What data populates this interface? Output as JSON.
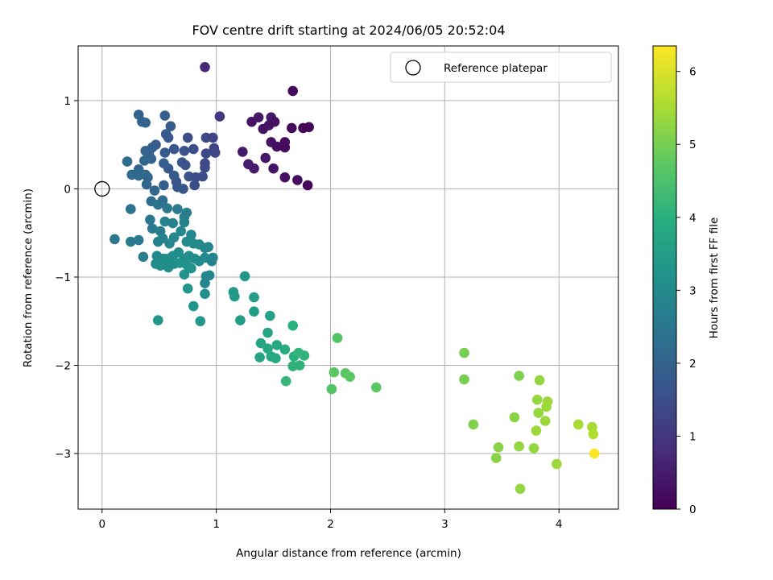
{
  "chart_data": {
    "type": "scatter",
    "title": "FOV centre drift starting at 2024/06/05 20:52:04",
    "xlabel": "Angular distance from reference (arcmin)",
    "ylabel": "Rotation from reference (arcmin)",
    "xlim": [
      -0.21,
      4.52
    ],
    "ylim": [
      -3.63,
      1.62
    ],
    "xticks": [
      0,
      1,
      2,
      3,
      4
    ],
    "yticks": [
      -3,
      -2,
      -1,
      0,
      1
    ],
    "grid": true,
    "legend": {
      "placement": "top-right",
      "entries": [
        "Reference platepar"
      ]
    },
    "reference_point": {
      "x": 0,
      "y": 0,
      "label": "Reference platepar"
    },
    "colorbar": {
      "label": "Hours from first FF file",
      "colormap": "viridis",
      "range": [
        0,
        6.35
      ],
      "ticks": [
        0,
        1,
        2,
        3,
        4,
        5,
        6
      ]
    },
    "points": [
      [
        0.9,
        1.38,
        0.7
      ],
      [
        1.67,
        1.11,
        0.15
      ],
      [
        1.03,
        0.82,
        1.0
      ],
      [
        1.31,
        0.76,
        0.3
      ],
      [
        1.37,
        0.81,
        0.4
      ],
      [
        1.48,
        0.81,
        0.45
      ],
      [
        1.41,
        0.68,
        0.3
      ],
      [
        1.46,
        0.72,
        0.35
      ],
      [
        1.51,
        0.76,
        0.3
      ],
      [
        1.48,
        0.53,
        0.3
      ],
      [
        1.53,
        0.48,
        0.25
      ],
      [
        1.6,
        0.53,
        0.2
      ],
      [
        1.6,
        0.47,
        0.2
      ],
      [
        1.66,
        0.69,
        0.15
      ],
      [
        1.76,
        0.69,
        0.1
      ],
      [
        1.81,
        0.7,
        0.1
      ],
      [
        1.23,
        0.42,
        0.45
      ],
      [
        1.28,
        0.28,
        0.5
      ],
      [
        1.33,
        0.23,
        0.5
      ],
      [
        1.43,
        0.35,
        0.4
      ],
      [
        1.5,
        0.23,
        0.35
      ],
      [
        1.6,
        0.13,
        0.25
      ],
      [
        1.71,
        0.1,
        0.2
      ],
      [
        1.8,
        0.04,
        0.1
      ],
      [
        0.32,
        0.84,
        2.0
      ],
      [
        0.35,
        0.76,
        2.0
      ],
      [
        0.38,
        0.75,
        2.0
      ],
      [
        0.55,
        0.83,
        1.9
      ],
      [
        0.6,
        0.71,
        1.8
      ],
      [
        0.56,
        0.62,
        1.8
      ],
      [
        0.58,
        0.58,
        1.7
      ],
      [
        0.75,
        0.58,
        1.5
      ],
      [
        0.91,
        0.58,
        1.4
      ],
      [
        0.97,
        0.58,
        1.3
      ],
      [
        0.98,
        0.46,
        1.3
      ],
      [
        0.99,
        0.41,
        1.3
      ],
      [
        0.91,
        0.4,
        1.4
      ],
      [
        0.8,
        0.45,
        1.5
      ],
      [
        0.72,
        0.43,
        1.6
      ],
      [
        0.63,
        0.45,
        1.7
      ],
      [
        0.55,
        0.41,
        1.8
      ],
      [
        0.47,
        0.5,
        1.8
      ],
      [
        0.44,
        0.47,
        1.9
      ],
      [
        0.41,
        0.4,
        2.0
      ],
      [
        0.38,
        0.43,
        2.0
      ],
      [
        0.43,
        0.34,
        2.0
      ],
      [
        0.37,
        0.32,
        2.1
      ],
      [
        0.32,
        0.22,
        2.1
      ],
      [
        0.22,
        0.31,
        2.2
      ],
      [
        0.26,
        0.16,
        2.2
      ],
      [
        0.32,
        0.15,
        2.2
      ],
      [
        0.38,
        0.16,
        2.1
      ],
      [
        0.4,
        0.13,
        2.1
      ],
      [
        0.39,
        0.05,
        2.1
      ],
      [
        0.54,
        0.29,
        1.9
      ],
      [
        0.58,
        0.23,
        1.8
      ],
      [
        0.63,
        0.15,
        1.8
      ],
      [
        0.65,
        0.08,
        1.7
      ],
      [
        0.7,
        0.3,
        1.7
      ],
      [
        0.73,
        0.27,
        1.6
      ],
      [
        0.76,
        0.14,
        1.6
      ],
      [
        0.82,
        0.13,
        1.5
      ],
      [
        0.9,
        0.24,
        1.4
      ],
      [
        0.9,
        0.29,
        1.4
      ],
      [
        0.88,
        0.14,
        1.5
      ],
      [
        0.81,
        0.04,
        1.5
      ],
      [
        0.71,
        0.0,
        1.7
      ],
      [
        0.66,
        0.02,
        1.7
      ],
      [
        0.54,
        0.04,
        1.9
      ],
      [
        0.46,
        -0.02,
        2.1
      ],
      [
        0.25,
        -0.23,
        2.4
      ],
      [
        0.43,
        -0.14,
        2.3
      ],
      [
        0.49,
        -0.18,
        2.4
      ],
      [
        0.53,
        -0.13,
        2.3
      ],
      [
        0.57,
        -0.22,
        2.5
      ],
      [
        0.66,
        -0.23,
        2.6
      ],
      [
        0.74,
        -0.27,
        2.7
      ],
      [
        0.72,
        -0.32,
        2.7
      ],
      [
        0.55,
        -0.37,
        2.8
      ],
      [
        0.62,
        -0.39,
        2.8
      ],
      [
        0.42,
        -0.35,
        2.5
      ],
      [
        0.44,
        -0.45,
        2.6
      ],
      [
        0.51,
        -0.48,
        2.7
      ],
      [
        0.53,
        -0.56,
        2.8
      ],
      [
        0.49,
        -0.6,
        2.8
      ],
      [
        0.59,
        -0.62,
        2.9
      ],
      [
        0.63,
        -0.55,
        2.9
      ],
      [
        0.69,
        -0.48,
        2.9
      ],
      [
        0.72,
        -0.38,
        2.8
      ],
      [
        0.78,
        -0.52,
        2.9
      ],
      [
        0.74,
        -0.6,
        3.0
      ],
      [
        0.8,
        -0.62,
        3.0
      ],
      [
        0.85,
        -0.63,
        3.0
      ],
      [
        0.9,
        -0.67,
        2.9
      ],
      [
        0.93,
        -0.66,
        2.9
      ],
      [
        0.97,
        -0.78,
        2.8
      ],
      [
        0.96,
        -0.82,
        2.8
      ],
      [
        0.9,
        -0.78,
        3.0
      ],
      [
        0.85,
        -0.82,
        3.0
      ],
      [
        0.81,
        -0.79,
        3.1
      ],
      [
        0.76,
        -0.76,
        3.1
      ],
      [
        0.72,
        -0.79,
        3.1
      ],
      [
        0.67,
        -0.72,
        3.1
      ],
      [
        0.62,
        -0.76,
        3.1
      ],
      [
        0.58,
        -0.79,
        3.1
      ],
      [
        0.54,
        -0.79,
        3.1
      ],
      [
        0.49,
        -0.82,
        3.0
      ],
      [
        0.48,
        -0.76,
        3.0
      ],
      [
        0.47,
        -0.85,
        3.0
      ],
      [
        0.51,
        -0.87,
        3.1
      ],
      [
        0.58,
        -0.89,
        3.1
      ],
      [
        0.63,
        -0.85,
        3.1
      ],
      [
        0.68,
        -0.84,
        3.2
      ],
      [
        0.74,
        -0.86,
        3.2
      ],
      [
        0.78,
        -0.9,
        3.2
      ],
      [
        0.72,
        -0.97,
        3.2
      ],
      [
        0.75,
        -1.13,
        3.3
      ],
      [
        0.91,
        -0.99,
        2.9
      ],
      [
        0.94,
        -0.98,
        2.9
      ],
      [
        0.9,
        -1.07,
        2.9
      ],
      [
        0.9,
        -1.19,
        3.1
      ],
      [
        0.8,
        -1.33,
        3.3
      ],
      [
        0.86,
        -1.5,
        3.3
      ],
      [
        0.49,
        -1.49,
        3.3
      ],
      [
        0.11,
        -0.57,
        2.5
      ],
      [
        0.25,
        -0.6,
        2.6
      ],
      [
        0.32,
        -0.58,
        2.6
      ],
      [
        0.36,
        -0.77,
        2.7
      ],
      [
        1.25,
        -0.99,
        3.3
      ],
      [
        1.15,
        -1.17,
        3.4
      ],
      [
        1.16,
        -1.22,
        3.4
      ],
      [
        1.33,
        -1.23,
        3.5
      ],
      [
        1.33,
        -1.39,
        3.5
      ],
      [
        1.21,
        -1.49,
        3.5
      ],
      [
        1.47,
        -1.44,
        3.6
      ],
      [
        1.45,
        -1.63,
        3.7
      ],
      [
        1.39,
        -1.75,
        3.7
      ],
      [
        1.45,
        -1.81,
        3.8
      ],
      [
        1.53,
        -1.77,
        3.8
      ],
      [
        1.38,
        -1.91,
        3.7
      ],
      [
        1.48,
        -1.9,
        3.8
      ],
      [
        1.52,
        -1.92,
        3.8
      ],
      [
        1.6,
        -1.82,
        3.9
      ],
      [
        1.67,
        -1.55,
        4.0
      ],
      [
        1.68,
        -1.9,
        4.0
      ],
      [
        1.72,
        -1.86,
        4.1
      ],
      [
        1.77,
        -1.89,
        4.1
      ],
      [
        1.73,
        -2.0,
        4.1
      ],
      [
        1.67,
        -2.01,
        4.1
      ],
      [
        1.61,
        -2.18,
        4.2
      ],
      [
        2.06,
        -1.69,
        4.6
      ],
      [
        2.03,
        -2.08,
        4.7
      ],
      [
        2.13,
        -2.09,
        4.7
      ],
      [
        2.17,
        -2.13,
        4.7
      ],
      [
        2.01,
        -2.27,
        4.6
      ],
      [
        2.4,
        -2.25,
        4.7
      ],
      [
        3.17,
        -1.86,
        5.0
      ],
      [
        3.17,
        -2.16,
        5.0
      ],
      [
        3.25,
        -2.67,
        5.1
      ],
      [
        3.47,
        -2.93,
        5.2
      ],
      [
        3.45,
        -3.05,
        5.2
      ],
      [
        3.61,
        -2.59,
        5.2
      ],
      [
        3.65,
        -2.12,
        5.1
      ],
      [
        3.65,
        -2.92,
        5.3
      ],
      [
        3.66,
        -3.4,
        5.3
      ],
      [
        3.78,
        -2.94,
        5.3
      ],
      [
        3.8,
        -2.74,
        5.4
      ],
      [
        3.81,
        -2.39,
        5.3
      ],
      [
        3.82,
        -2.54,
        5.3
      ],
      [
        3.83,
        -2.17,
        5.3
      ],
      [
        3.88,
        -2.63,
        5.4
      ],
      [
        3.9,
        -2.41,
        5.4
      ],
      [
        3.89,
        -2.47,
        5.4
      ],
      [
        3.98,
        -3.12,
        5.4
      ],
      [
        4.17,
        -2.67,
        5.5
      ],
      [
        4.29,
        -2.7,
        5.5
      ],
      [
        4.3,
        -2.78,
        5.6
      ],
      [
        4.31,
        -3.0,
        6.35
      ]
    ]
  }
}
